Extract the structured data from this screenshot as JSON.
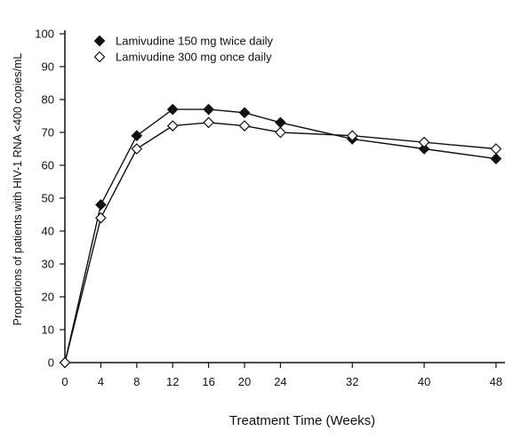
{
  "chart_data": {
    "type": "line",
    "title": "",
    "xlabel": "Treatment Time (Weeks)",
    "ylabel": "Proportions of patients with HIV-1 RNA <400 copies/mL",
    "xlim": [
      0,
      49
    ],
    "ylim": [
      0,
      100
    ],
    "x_ticks": [
      0,
      4,
      8,
      12,
      16,
      20,
      24,
      32,
      40,
      48
    ],
    "y_ticks": [
      0,
      10,
      20,
      30,
      40,
      50,
      60,
      70,
      80,
      90,
      100
    ],
    "grid": false,
    "legend_position": "top-left",
    "x": [
      0,
      4,
      8,
      12,
      16,
      20,
      24,
      32,
      40,
      48
    ],
    "series": [
      {
        "name": "Lamivudine 150 mg twice daily",
        "marker": "filled-diamond",
        "color": "#111111",
        "values": [
          0,
          48,
          69,
          77,
          77,
          76,
          73,
          68,
          65,
          62
        ]
      },
      {
        "name": "Lamivudine 300 mg once daily",
        "marker": "open-diamond",
        "color": "#111111",
        "values": [
          0,
          44,
          65,
          72,
          73,
          72,
          70,
          69,
          67,
          65
        ]
      }
    ]
  }
}
